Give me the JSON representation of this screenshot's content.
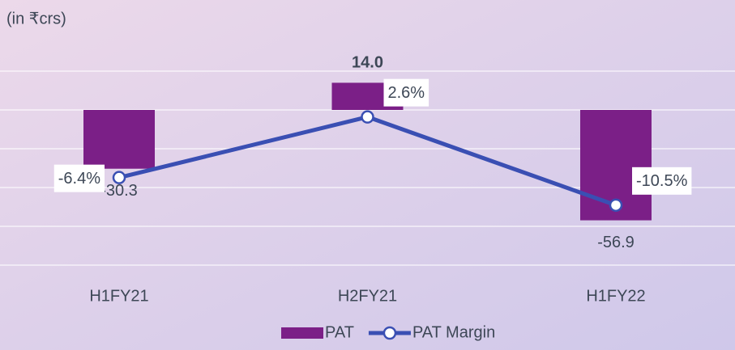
{
  "chart_data": {
    "type": "bar_line",
    "subtitle": "(in ₹crs)",
    "categories": [
      "H1FY21",
      "H2FY21",
      "H1FY22"
    ],
    "series": [
      {
        "name": "PAT",
        "type": "bar",
        "color": "#7b1f87",
        "values": [
          -30.3,
          14.0,
          -56.9
        ],
        "value_labels": [
          "-30.3",
          "14.0",
          "-56.9"
        ]
      },
      {
        "name": "PAT Margin",
        "type": "line",
        "axis": "y2",
        "color": "#3a4fb3",
        "values": [
          -6.4,
          2.6,
          -10.5
        ],
        "value_labels": [
          "-6.4%",
          "2.6%",
          "-10.5%"
        ]
      }
    ],
    "ylim": [
      -80,
      20
    ],
    "yticks": [
      -80,
      -60,
      -40,
      -20,
      0,
      20
    ],
    "y2lim": [
      -19.4,
      9.4
    ],
    "grid": true,
    "legend": "bottom"
  }
}
